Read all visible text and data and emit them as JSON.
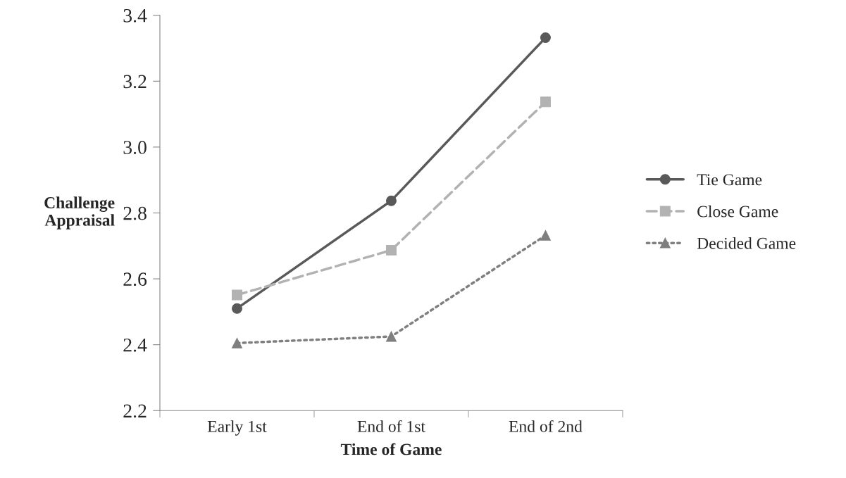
{
  "chart_data": {
    "type": "line",
    "xlabel": "Time of Game",
    "ylabel": "Challenge\nAppraisal",
    "categories": [
      "Early 1st",
      "End of 1st",
      "End of 2nd"
    ],
    "series": [
      {
        "name": "Tie Game",
        "color": "#595959",
        "values": [
          2.51,
          2.837,
          3.332
        ],
        "marker": "circle",
        "line_style": "solid"
      },
      {
        "name": "Close Game",
        "color": "#b2b2b2",
        "values": [
          2.551,
          2.687,
          3.137
        ],
        "marker": "square",
        "line_style": "dashed"
      },
      {
        "name": "Decided Game",
        "color": "#7f7f7f",
        "values": [
          2.405,
          2.425,
          2.732
        ],
        "marker": "triangle",
        "line_style": "dotted"
      }
    ],
    "ylim": [
      2.2,
      3.4
    ],
    "yticks": [
      {
        "value": 2.2,
        "label": "2.2"
      },
      {
        "value": 2.4,
        "label": "2.4"
      },
      {
        "value": 2.6,
        "label": "2.6"
      },
      {
        "value": 2.8,
        "label": "2.8"
      },
      {
        "value": 3.0,
        "label": "3.0"
      },
      {
        "value": 3.2,
        "label": "3.2"
      },
      {
        "value": 3.4,
        "label": "3.4"
      }
    ],
    "grid": false,
    "legend": "right"
  }
}
